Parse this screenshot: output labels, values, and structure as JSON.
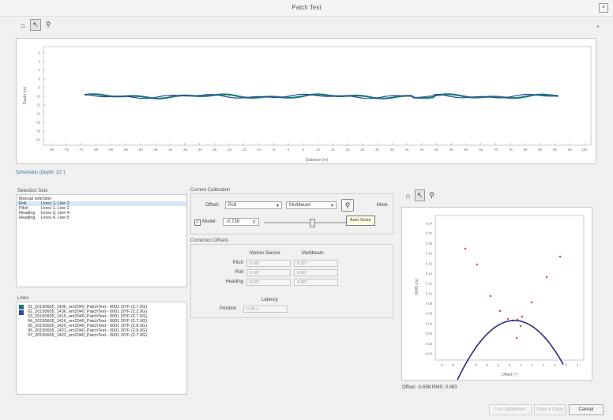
{
  "window": {
    "title": "Patch Test",
    "close_label": "×"
  },
  "toolbar": {
    "home_icon": "⌂",
    "pointer_icon": "↖",
    "zoom_icon": "⚲"
  },
  "main_plot": {
    "ylabel": "Depth (m)",
    "xlabel": "Distance (m)",
    "yticks": [
      "0",
      "2",
      "4",
      "6",
      "8",
      "10",
      "12",
      "14",
      "16",
      "18",
      "20"
    ],
    "xticks": [
      "-80",
      "-75",
      "-70",
      "-65",
      "-60",
      "-55",
      "-50",
      "-45",
      "-40",
      "-35",
      "-30",
      "-25",
      "-20",
      "-15",
      "-10",
      "-5",
      "0",
      "5",
      "10",
      "15",
      "20",
      "25",
      "30",
      "35",
      "40",
      "45",
      "50",
      "55",
      "60",
      "65",
      "70",
      "75",
      "80",
      "85",
      "90",
      "95",
      "100"
    ],
    "line_colors": [
      "#1a7a7a",
      "#2a4a9a"
    ]
  },
  "section_link": "Schematic (Depth: 10 ')",
  "selection_sets": {
    "title": "Selection Sets",
    "header": "Manual selection",
    "rows": [
      {
        "name": "Roll",
        "lines": "Lines 1, Line 2",
        "selected": true
      },
      {
        "name": "Pitch",
        "lines": "Lines 1, Line 2",
        "selected": false
      },
      {
        "name": "Heading",
        "lines": "Lines 3, Line 4",
        "selected": false
      },
      {
        "name": "Heading",
        "lines": "Lines 4, Line 5",
        "selected": false
      }
    ]
  },
  "lines": {
    "title": "Lines",
    "files": [
      "01_20150605_1436_em2040_PatchTest - 0001 20°F (2.7.0G)",
      "02_20150605_1436_em2040_PatchTest - 0001 20°F (2.2.0G)",
      "03_20150605_1415_em2040_PatchTest - 0001 20°F (2.7.0G)",
      "04_20150605_1416_em2040_PatchTest - 0001 20°F (2.7.0G)",
      "05_20150605_1425_em2040_PatchTest - 0001 20°F (2.8.0G)",
      "06_20150605_1421_em2040_PatchTest - 0001 20°F (2.8.0G)",
      "07_20150605_1422_em2040_PatchTest - 0001 20°F (2.7.0G)"
    ],
    "swatch_colors": [
      "#1a7a7a",
      "#2a4a9a"
    ]
  },
  "current_calibration": {
    "title": "Current Calibration",
    "offset_label": "Offset:",
    "offset_value": "Roll",
    "sensor_value": "Multibeam",
    "more_label": "More",
    "model_label": "Model:",
    "model_value": "-0.738",
    "tooltip": "Auto Solve"
  },
  "correction_offsets": {
    "title": "Correction Offsets",
    "col1": "Motion Sensor",
    "col2": "Multibeam",
    "rows": [
      {
        "label": "Pitch",
        "v1": "0.00°",
        "v2": "0.00°"
      },
      {
        "label": "Roll",
        "v1": "0.00°",
        "v2": "0.00°"
      },
      {
        "label": "Heading",
        "v1": "0.00°",
        "v2": "0.00°"
      }
    ],
    "latency_title": "Latency",
    "latency_label": "Position",
    "latency_value": "0.00 s"
  },
  "mini_plot": {
    "yticks": [
      "0.24",
      "0.22",
      "0.20",
      "0.18",
      "0.16",
      "0.14",
      "0.12",
      "0.10",
      "0.08",
      "0.06",
      "0.04",
      "0.02",
      "0.00",
      "-0.02"
    ],
    "xticks": [
      "-6",
      "-5",
      "-4",
      "-3",
      "-2",
      "-1",
      "0",
      "1",
      "2",
      "3",
      "4",
      "5",
      "6"
    ],
    "ylabel": "RMS (m)",
    "xlabel": "Offset (°)",
    "curve_color": "#2a2a8a"
  },
  "offset_readout": "Offset: -0.658 RMS: 0.063",
  "buttons": {
    "use_calibration": "Use calibration",
    "save_copy": "Save a Copy",
    "cancel": "Cancel"
  }
}
